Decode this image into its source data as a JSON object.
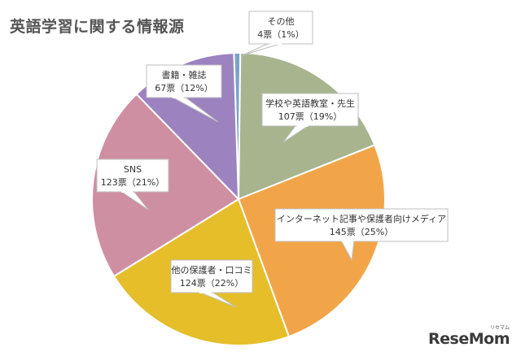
{
  "chart_data": {
    "type": "pie",
    "title": "英語学習に関する情報源",
    "slices": [
      {
        "label": "学校や英語教室・先生",
        "votes": 107,
        "percent_label": "107票（19%）",
        "value": 19,
        "color": "#a8b48e"
      },
      {
        "label": "インターネット記事や保護者向けメディア",
        "votes": 145,
        "percent_label": "145票（25%）",
        "value": 25,
        "color": "#f2a548"
      },
      {
        "label": "他の保護者・口コミ",
        "votes": 124,
        "percent_label": "124票（22%）",
        "value": 22,
        "color": "#e5be2a"
      },
      {
        "label": "SNS",
        "votes": 123,
        "percent_label": "123票（21%）",
        "value": 21,
        "color": "#cf8fa2"
      },
      {
        "label": "書籍・雑誌",
        "votes": 67,
        "percent_label": "67票（12%）",
        "value": 12,
        "color": "#9c82bf"
      },
      {
        "label": "その他",
        "votes": 4,
        "percent_label": "4票（1%）",
        "value": 1,
        "color": "#7aa3c9"
      }
    ]
  },
  "logo": {
    "text": "ReseMom",
    "kana": "リセマム"
  }
}
